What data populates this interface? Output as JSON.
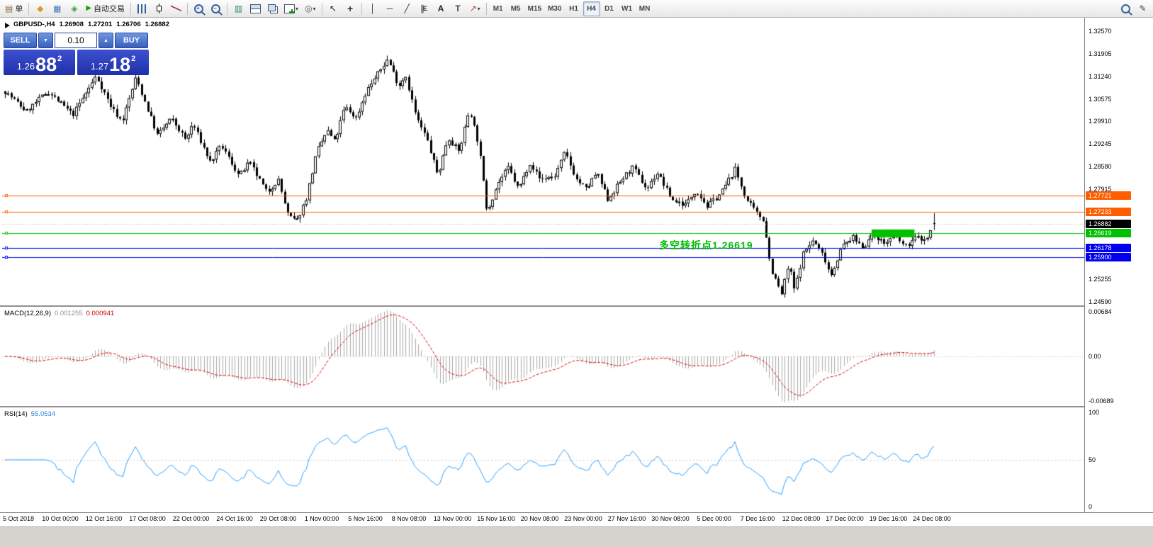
{
  "toolbar": {
    "new_order_label": "单",
    "autotrade_label": "自动交易",
    "timeframes": [
      "M1",
      "M5",
      "M15",
      "M30",
      "H1",
      "H4",
      "D1",
      "W1",
      "MN"
    ],
    "active_timeframe": "H4"
  },
  "icons": {
    "new_order": "▤",
    "market_watch": "◆",
    "data_window": "▦",
    "navigator": "◈",
    "autotrade": "▶",
    "indicator_list": "▥",
    "profiles": "◎",
    "cursor": "↖",
    "crosshair": "+",
    "vline": "│",
    "hline": "─",
    "trendline": "╱",
    "channel": "∥",
    "channel_letter": "E",
    "text": "A",
    "label": "T",
    "arrows": "↗",
    "pencil": "✎",
    "caret": "▾",
    "zoom_in_sign": "+",
    "zoom_out_sign": "−",
    "spin_up": "▲",
    "spin_down": "▼"
  },
  "info_bar": {
    "symbol": "GBPUSD-,H4",
    "open": "1.26908",
    "high": "1.27201",
    "low": "1.26706",
    "close": "1.26882"
  },
  "one_click": {
    "sell_label": "SELL",
    "buy_label": "BUY",
    "volume": "0.10",
    "sell_price_prefix": "1.26",
    "sell_price_big": "88",
    "sell_price_sup": "2",
    "buy_price_prefix": "1.27",
    "buy_price_big": "18",
    "buy_price_sup": "2"
  },
  "annotation": {
    "text": "多空转折点1.26619",
    "color": "#00c000"
  },
  "price_axis": {
    "labels": [
      "1.32570",
      "1.31905",
      "1.31240",
      "1.30575",
      "1.29910",
      "1.29245",
      "1.28580",
      "1.27915",
      "1.25255",
      "1.24590"
    ],
    "tags": [
      {
        "text": "1.27721",
        "bg": "#ff5d00"
      },
      {
        "text": "1.27233",
        "bg": "#ff5d00"
      },
      {
        "text": "1.26882",
        "bg": "#000000"
      },
      {
        "text": "1.26619",
        "bg": "#00c000"
      },
      {
        "text": "1.26178",
        "bg": "#0000ee"
      },
      {
        "text": "1.25900",
        "bg": "#0000ee"
      }
    ]
  },
  "macd_panel": {
    "name": "MACD(12,26,9)",
    "value_main": "0.001255",
    "value_signal": "0.000941",
    "axis": [
      "0.00684",
      "0.00",
      "-0.00689"
    ]
  },
  "rsi_panel": {
    "name": "RSI(14)",
    "value": "55.0534",
    "axis": [
      "100",
      "50",
      "0"
    ]
  },
  "time_axis": [
    "5 Oct 2018",
    "10 Oct 00:00",
    "12 Oct 16:00",
    "17 Oct 08:00",
    "22 Oct 00:00",
    "24 Oct 16:00",
    "29 Oct 08:00",
    "1 Nov 00:00",
    "5 Nov 16:00",
    "8 Nov 08:00",
    "13 Nov 00:00",
    "15 Nov 16:00",
    "20 Nov 08:00",
    "23 Nov 00:00",
    "27 Nov 16:00",
    "30 Nov 08:00",
    "5 Dec 00:00",
    "7 Dec 16:00",
    "12 Dec 08:00",
    "17 Dec 00:00",
    "19 Dec 16:00",
    "24 Dec 08:00"
  ],
  "chart_data": {
    "type": "candlestick",
    "symbol": "GBPUSD-",
    "timeframe": "H4",
    "num_candles": 300,
    "seed": 7,
    "price_axis_top": 1.3297,
    "price_axis_bottom": 1.2448,
    "price_path": [
      [
        0.0,
        1.308
      ],
      [
        0.023,
        1.302
      ],
      [
        0.046,
        1.308
      ],
      [
        0.073,
        1.301
      ],
      [
        0.098,
        1.3125
      ],
      [
        0.115,
        1.303
      ],
      [
        0.126,
        1.299
      ],
      [
        0.141,
        1.312
      ],
      [
        0.164,
        1.295
      ],
      [
        0.179,
        1.3
      ],
      [
        0.195,
        1.2935
      ],
      [
        0.202,
        1.2985
      ],
      [
        0.221,
        1.287
      ],
      [
        0.233,
        1.292
      ],
      [
        0.252,
        1.283
      ],
      [
        0.263,
        1.287
      ],
      [
        0.282,
        1.278
      ],
      [
        0.294,
        1.282
      ],
      [
        0.305,
        1.271
      ],
      [
        0.314,
        1.2697
      ],
      [
        0.324,
        1.276
      ],
      [
        0.336,
        1.29
      ],
      [
        0.347,
        1.2965
      ],
      [
        0.355,
        1.293
      ],
      [
        0.366,
        1.3035
      ],
      [
        0.378,
        1.3
      ],
      [
        0.389,
        1.308
      ],
      [
        0.401,
        1.313
      ],
      [
        0.412,
        1.3175
      ],
      [
        0.424,
        1.3095
      ],
      [
        0.431,
        1.313
      ],
      [
        0.443,
        1.3
      ],
      [
        0.454,
        1.294
      ],
      [
        0.466,
        1.283
      ],
      [
        0.477,
        1.2945
      ],
      [
        0.489,
        1.29
      ],
      [
        0.5,
        1.303
      ],
      [
        0.51,
        1.292
      ],
      [
        0.519,
        1.2725
      ],
      [
        0.531,
        1.281
      ],
      [
        0.542,
        1.2855
      ],
      [
        0.553,
        1.279
      ],
      [
        0.565,
        1.287
      ],
      [
        0.576,
        1.282
      ],
      [
        0.592,
        1.283
      ],
      [
        0.603,
        1.29
      ],
      [
        0.615,
        1.282
      ],
      [
        0.626,
        1.279
      ],
      [
        0.637,
        1.284
      ],
      [
        0.649,
        1.276
      ],
      [
        0.664,
        1.282
      ],
      [
        0.676,
        1.2855
      ],
      [
        0.691,
        1.279
      ],
      [
        0.702,
        1.284
      ],
      [
        0.718,
        1.276
      ],
      [
        0.733,
        1.2745
      ],
      [
        0.744,
        1.279
      ],
      [
        0.756,
        1.274
      ],
      [
        0.771,
        1.278
      ],
      [
        0.786,
        1.285
      ],
      [
        0.798,
        1.276
      ],
      [
        0.809,
        1.272
      ],
      [
        0.817,
        1.27
      ],
      [
        0.824,
        1.256
      ],
      [
        0.836,
        1.248
      ],
      [
        0.844,
        1.257
      ],
      [
        0.85,
        1.249
      ],
      [
        0.859,
        1.26
      ],
      [
        0.87,
        1.264
      ],
      [
        0.882,
        1.259
      ],
      [
        0.889,
        1.2535
      ],
      [
        0.901,
        1.262
      ],
      [
        0.912,
        1.265
      ],
      [
        0.924,
        1.262
      ],
      [
        0.935,
        1.266
      ],
      [
        0.947,
        1.263
      ],
      [
        0.958,
        1.2655
      ],
      [
        0.969,
        1.262
      ],
      [
        0.981,
        1.265
      ],
      [
        0.992,
        1.264
      ],
      [
        1.0,
        1.2688
      ]
    ],
    "hlines": [
      {
        "price": 1.27721,
        "color": "#ff5d00",
        "style": "solid"
      },
      {
        "price": 1.27233,
        "color": "#ff5d00",
        "style": "solid"
      },
      {
        "price": 1.26619,
        "color": "#00c000",
        "style": "solid"
      },
      {
        "price": 1.26178,
        "color": "#0000ee",
        "style": "solid"
      },
      {
        "price": 1.259,
        "color": "#0000ee",
        "style": "solid"
      },
      {
        "price": 1.26882,
        "color": "#b4b4b4",
        "style": "dotted"
      }
    ],
    "rect_object": {
      "t0": 0.93,
      "t1": 0.976,
      "price_top": 1.2672,
      "price_bottom": 1.2649,
      "color": "#00c000"
    },
    "macd": {
      "fast": 12,
      "slow": 26,
      "signal_period": 9,
      "histogram_color": "#a8a8a8",
      "signal_color": "#dd0000"
    },
    "rsi": {
      "period": 14,
      "color": "#2a9fff",
      "mid_level": 50
    }
  }
}
